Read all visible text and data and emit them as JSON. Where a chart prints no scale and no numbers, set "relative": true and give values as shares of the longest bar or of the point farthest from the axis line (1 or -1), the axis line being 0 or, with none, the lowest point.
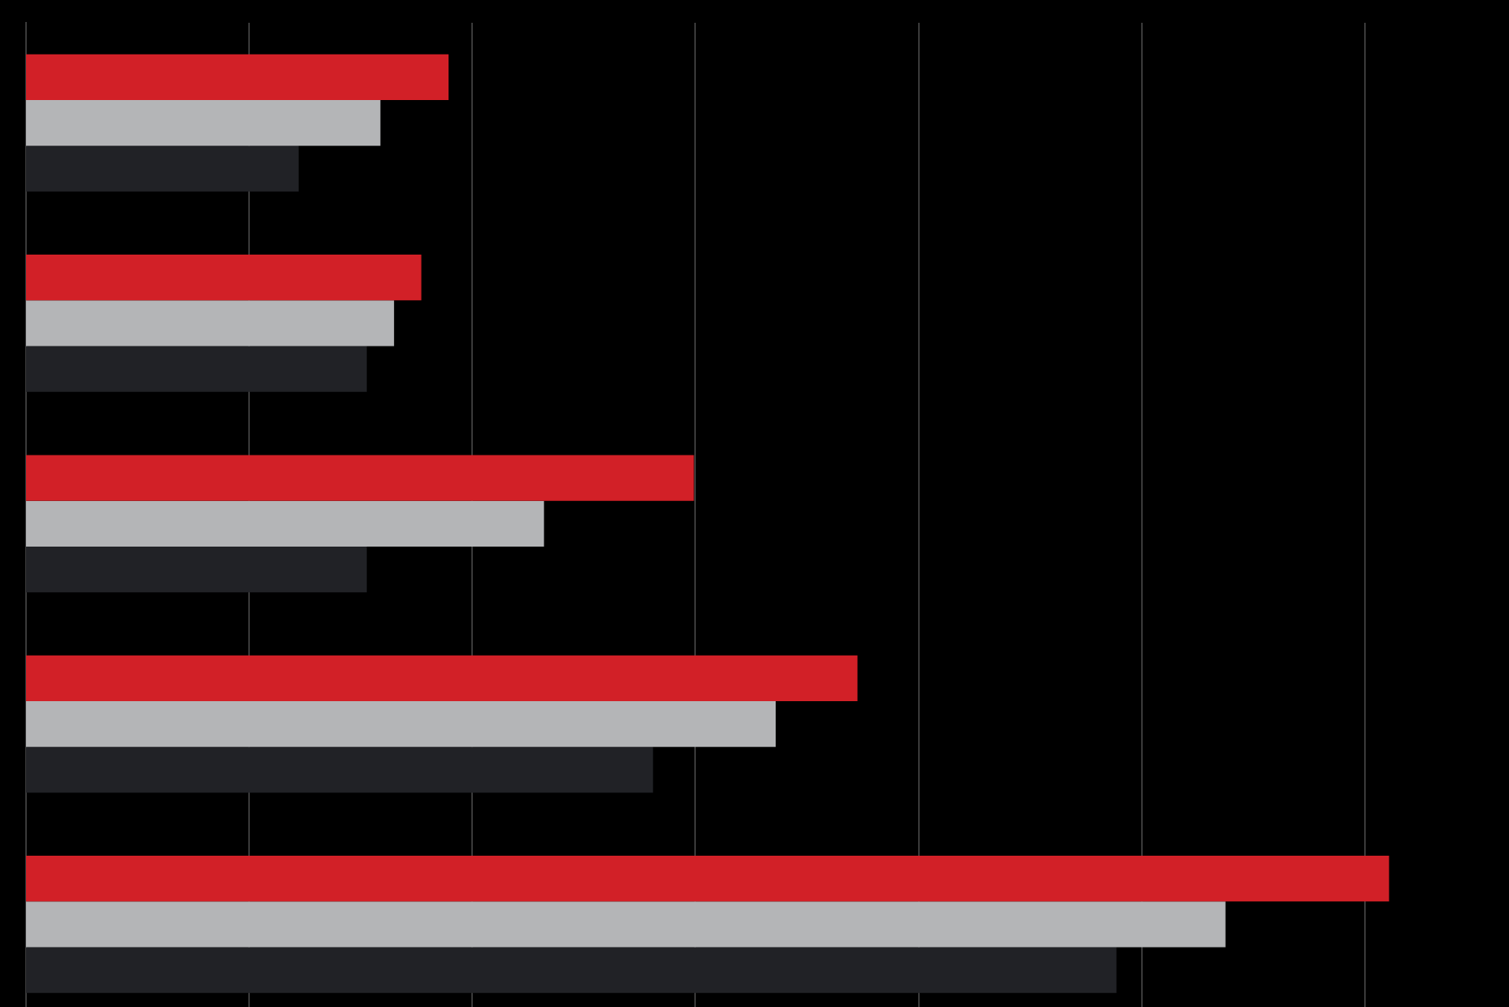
{
  "chart_data": {
    "type": "bar",
    "orientation": "horizontal",
    "relative": true,
    "grid": "x",
    "categories": [
      null,
      null,
      null,
      null,
      null
    ],
    "series": [
      {
        "color": "#d22027",
        "values": [
          0.31,
          0.29,
          0.49,
          0.61,
          1
        ]
      },
      {
        "color": "#b4b5b7",
        "values": [
          0.26,
          0.27,
          0.38,
          0.55,
          0.88
        ]
      },
      {
        "color": "#212226",
        "values": [
          0.2,
          0.25,
          0.25,
          0.46,
          0.8
        ]
      }
    ]
  }
}
